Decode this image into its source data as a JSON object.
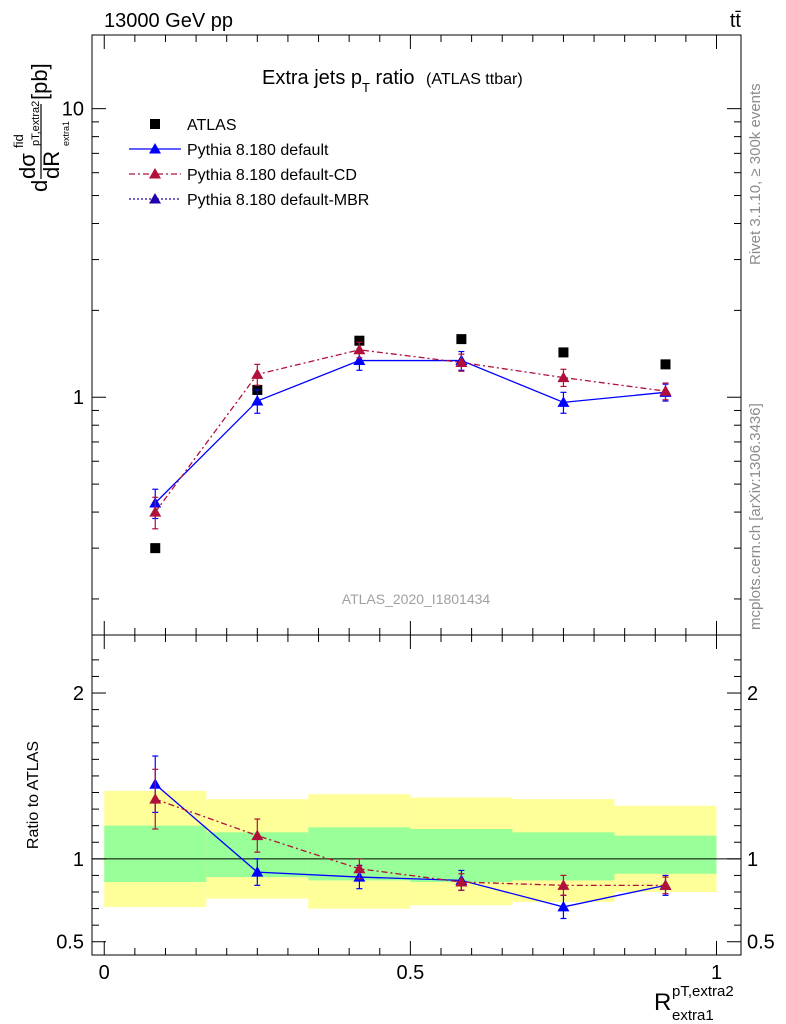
{
  "header": {
    "energy_label": "13000 GeV pp",
    "process_label": "tt̄"
  },
  "side_labels": {
    "rivet": "Rivet 3.1.10, ≥ 300k events",
    "mcplots": "mcplots.cern.ch [arXiv:1306.3436]"
  },
  "watermark": "ATLAS_2020_I1801434",
  "chart_data": [
    {
      "type": "scatter",
      "panel": "main",
      "title": {
        "main": "Extra jets p",
        "sub": "T",
        "rest": " ratio",
        "paren": "(ATLAS ttbar)"
      },
      "ylabel": {
        "d1": "d",
        "sigma": "dσ",
        "fid": "fid",
        "dR": "dR",
        "sub1": "pT,extra2",
        "sub2": "extra1",
        "unit": "[pb]"
      },
      "yscale": "log",
      "ylim": [
        0.15,
        18
      ],
      "xlim": [
        -0.02,
        1.04
      ],
      "yticks": [
        {
          "v": 1,
          "label": "1"
        },
        {
          "v": 10,
          "label": "10"
        }
      ],
      "legend_position": "top-left",
      "x": [
        0.0833,
        0.25,
        0.4167,
        0.5833,
        0.75,
        0.9167
      ],
      "series": [
        {
          "name": "ATLAS",
          "marker": "square",
          "color": "#000000",
          "line": "none",
          "values": [
            0.3,
            1.06,
            1.57,
            1.59,
            1.43,
            1.3
          ],
          "err": [
            0,
            0,
            0,
            0,
            0,
            0
          ]
        },
        {
          "name": "Pythia 8.180 default",
          "marker": "triangle",
          "color": "#0000ff",
          "line": "solid",
          "values": [
            0.43,
            0.97,
            1.34,
            1.34,
            0.96,
            1.04
          ],
          "err": [
            0.05,
            0.09,
            0.1,
            0.1,
            0.08,
            0.07
          ]
        },
        {
          "name": "Pythia 8.180 default-CD",
          "marker": "triangle",
          "color": "#b0103a",
          "line": "dashdot",
          "values": [
            0.4,
            1.2,
            1.46,
            1.32,
            1.17,
            1.05
          ],
          "err": [
            0.05,
            0.1,
            0.09,
            0.09,
            0.08,
            0.07
          ]
        },
        {
          "name": "Pythia 8.180 default-MBR",
          "marker": "triangle",
          "color": "#2200aa",
          "line": "dotted",
          "values": [],
          "err": []
        }
      ]
    },
    {
      "type": "scatter",
      "panel": "ratio",
      "ylabel": "Ratio to ATLAS",
      "xlabel": {
        "base": "R",
        "sup": "pT,extra2",
        "sub": "extra1"
      },
      "ylim": [
        0.42,
        2.35
      ],
      "xlim": [
        -0.02,
        1.04
      ],
      "yticks": [
        {
          "v": 0.5,
          "label": "0.5"
        },
        {
          "v": 1,
          "label": "1"
        },
        {
          "v": 2,
          "label": "2"
        }
      ],
      "xticks": [
        {
          "v": 0,
          "label": "0"
        },
        {
          "v": 0.5,
          "label": "0.5"
        },
        {
          "v": 1,
          "label": "1"
        }
      ],
      "bands": {
        "edges": [
          0,
          0.1667,
          0.3333,
          0.5,
          0.6667,
          0.8333,
          1.0
        ],
        "yellow": [
          [
            0.71,
            1.41
          ],
          [
            0.76,
            1.36
          ],
          [
            0.7,
            1.39
          ],
          [
            0.72,
            1.37
          ],
          [
            0.74,
            1.36
          ],
          [
            0.8,
            1.32
          ]
        ],
        "green": [
          [
            0.86,
            1.2
          ],
          [
            0.89,
            1.16
          ],
          [
            0.87,
            1.19
          ],
          [
            0.86,
            1.18
          ],
          [
            0.87,
            1.16
          ],
          [
            0.91,
            1.14
          ]
        ]
      },
      "x": [
        0.0833,
        0.25,
        0.4167,
        0.5833,
        0.75,
        0.9167
      ],
      "series": [
        {
          "name": "Pythia 8.180 default",
          "color": "#0000ff",
          "line": "solid",
          "values": [
            1.45,
            0.92,
            0.89,
            0.87,
            0.71,
            0.84
          ],
          "err": [
            0.17,
            0.08,
            0.07,
            0.06,
            0.07,
            0.06
          ]
        },
        {
          "name": "Pythia 8.180 default-CD",
          "color": "#b0103a",
          "line": "dashdot",
          "values": [
            1.36,
            1.14,
            0.94,
            0.86,
            0.84,
            0.84
          ],
          "err": [
            0.18,
            0.1,
            0.06,
            0.05,
            0.06,
            0.05
          ]
        }
      ]
    }
  ]
}
